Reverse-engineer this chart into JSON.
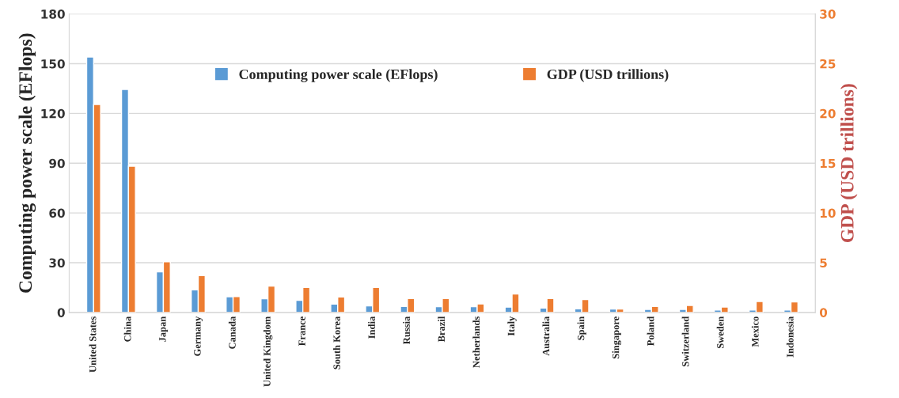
{
  "chart_data": {
    "type": "bar",
    "categories": [
      "United States",
      "China",
      "Japan",
      "Germany",
      "Canada",
      "United Kingdom",
      "France",
      "South Korea",
      "India",
      "Russia",
      "Brazil",
      "Netherlands",
      "Italy",
      "Australia",
      "Spain",
      "Singapore",
      "Poland",
      "Switzerland",
      "Sweden",
      "Mexico",
      "Indonesia"
    ],
    "series": [
      {
        "name": "Computing power scale (EFlops)",
        "color": "#5b9bd5",
        "values": [
          154,
          134.5,
          24.5,
          13.6,
          9.5,
          8.2,
          7.3,
          5,
          4,
          3.6,
          3.5,
          3.5,
          3.2,
          2.7,
          2.2,
          2,
          1.8,
          1.8,
          1.4,
          1.4,
          1.4
        ]
      },
      {
        "name": "GDP (USD trillions)",
        "color": "#ed7d31",
        "axis": "y2",
        "values": [
          20.9,
          14.7,
          5.1,
          3.7,
          1.6,
          2.65,
          2.5,
          1.55,
          2.5,
          1.4,
          1.4,
          0.85,
          1.85,
          1.4,
          1.3,
          0.35,
          0.6,
          0.7,
          0.55,
          1.1,
          1.05
        ]
      }
    ],
    "ylabel": "Computing power scale (EFlops)",
    "y2label": "GDP (USD trillions)",
    "ylim": [
      0,
      180
    ],
    "yticks": [
      0,
      30,
      60,
      90,
      120,
      150,
      180
    ],
    "y2lim": [
      0,
      30
    ],
    "y2ticks": [
      0,
      5,
      10,
      15,
      20,
      25,
      30
    ],
    "grid": "y",
    "legend": "top"
  }
}
